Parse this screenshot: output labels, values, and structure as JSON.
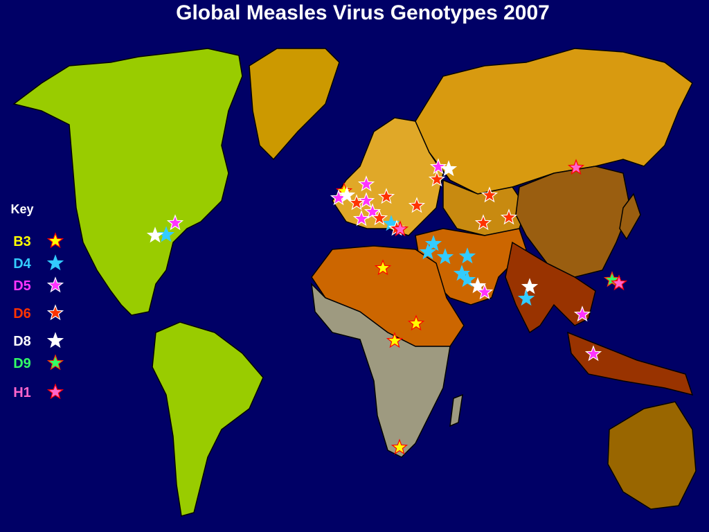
{
  "title": "Global Measles Virus Genotypes 2007",
  "key": {
    "title": "Key",
    "items": [
      {
        "label": "B3",
        "color": "#ffff00",
        "outline": "#ff0000"
      },
      {
        "label": "D4",
        "color": "#33ccff",
        "outline": "#33ccff"
      },
      {
        "label": "D5",
        "color": "#ff33ff",
        "outline": "#ffffff"
      },
      {
        "label": "D6",
        "color": "#ff3300",
        "outline": "#ffffff"
      },
      {
        "label": "D8",
        "color": "#ffffff",
        "outline": "#ffffff"
      },
      {
        "label": "D9",
        "color": "#33ff66",
        "outline": "#ff3300"
      },
      {
        "label": "H1",
        "color": "#ff66cc",
        "outline": "#ff0000"
      }
    ]
  }
}
